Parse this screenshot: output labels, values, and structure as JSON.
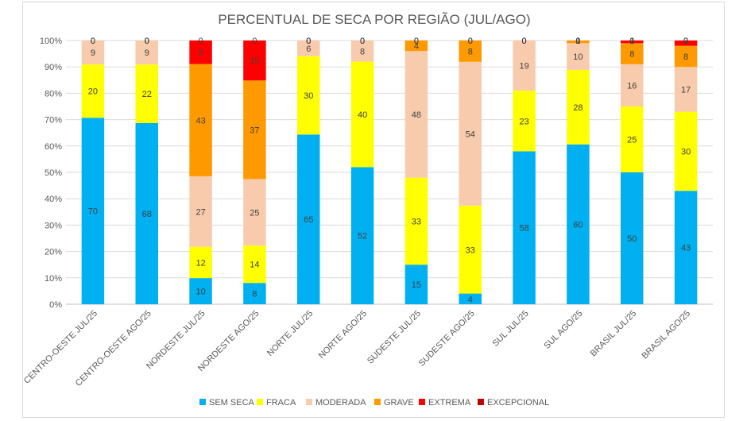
{
  "chart_data": {
    "type": "bar",
    "stacked": true,
    "percent_stacked": true,
    "title": "PERCENTUAL DE SECA POR REGIÃO (JUL/AGO)",
    "xlabel": "",
    "ylabel": "",
    "ylim": [
      0,
      100
    ],
    "y_ticks": [
      "0%",
      "10%",
      "20%",
      "30%",
      "40%",
      "50%",
      "60%",
      "70%",
      "80%",
      "90%",
      "100%"
    ],
    "grid": true,
    "legend_position": "bottom",
    "categories": [
      "CENTRO-OESTE JUL/25",
      "CENTRO-OESTE AGO/25",
      "NORDESTE JUL/25",
      "NORDESTE AGO/25",
      "NORTE JUL/25",
      "NORTE AGO/25",
      "SUDESTE JUL/25",
      "SUDESTE AGO/25",
      "SUL JUL/25",
      "SUL AGO/25",
      "BRASIL JUL/25",
      "BRASIL AGO/25"
    ],
    "series": [
      {
        "name": "SEM SECA",
        "color": "#00b0f0",
        "values": [
          70,
          68,
          10,
          8,
          65,
          52,
          15,
          4,
          58,
          60,
          50,
          43
        ]
      },
      {
        "name": "FRACA",
        "color": "#ffff00",
        "values": [
          20,
          22,
          12,
          14,
          30,
          40,
          33,
          33,
          23,
          28,
          25,
          30
        ]
      },
      {
        "name": "MODERADA",
        "color": "#f8cbad",
        "values": [
          9,
          9,
          27,
          25,
          6,
          8,
          48,
          54,
          19,
          10,
          16,
          17
        ]
      },
      {
        "name": "GRAVE",
        "color": "#ff9900",
        "values": [
          0,
          0,
          43,
          37,
          0,
          0,
          4,
          8,
          0,
          1,
          8,
          8
        ]
      },
      {
        "name": "EXTREMA",
        "color": "#ff0000",
        "values": [
          0,
          0,
          9,
          15,
          0,
          0,
          0,
          0,
          0,
          0,
          1,
          2
        ]
      },
      {
        "name": "EXCEPCIONAL",
        "color": "#c00000",
        "values": [
          0,
          0,
          0,
          0,
          0,
          0,
          0,
          0,
          0,
          0,
          0,
          0
        ]
      }
    ]
  }
}
